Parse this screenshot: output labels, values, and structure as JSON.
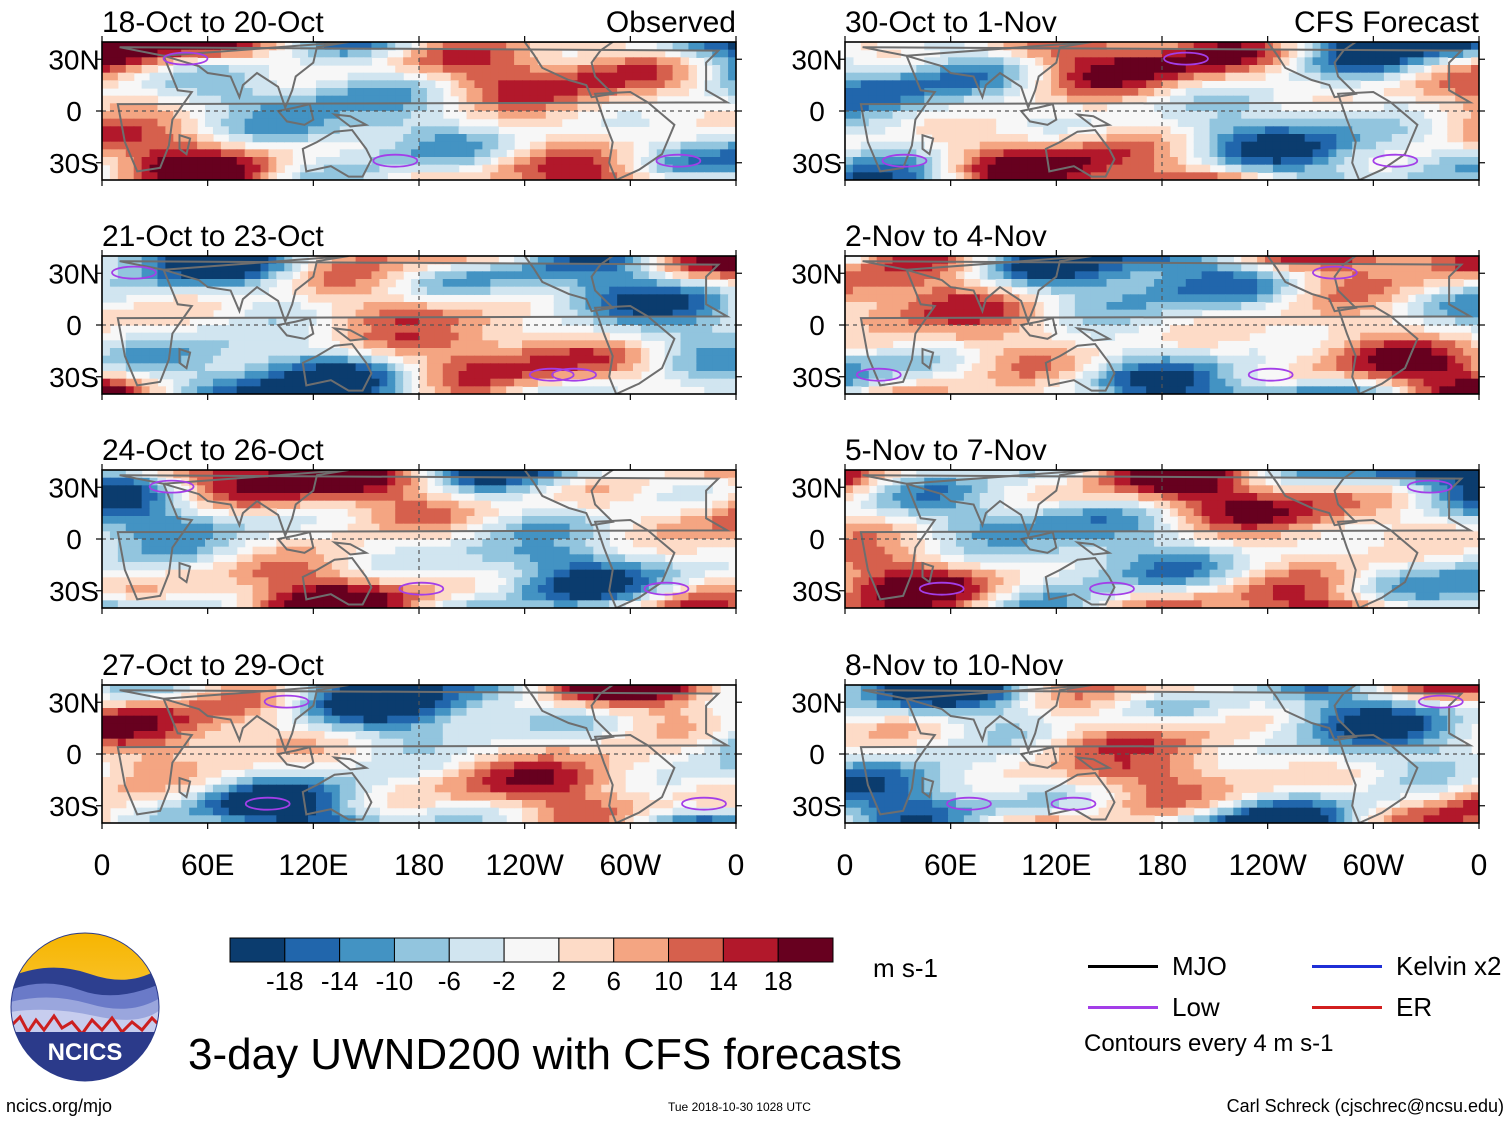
{
  "chart_data": {
    "type": "heatmap",
    "title": "3-day UWND200 with CFS forecasts",
    "variable": "UWND200",
    "units": "m s-1",
    "column_headers": [
      "Observed",
      "CFS Forecast"
    ],
    "x_ticks": [
      "0",
      "60E",
      "120E",
      "180",
      "120W",
      "60W",
      "0"
    ],
    "y_ticks": [
      "30N",
      "0",
      "30S"
    ],
    "colorbar": {
      "ticks": [
        "-18",
        "-14",
        "-10",
        "-6",
        "-2",
        "2",
        "6",
        "10",
        "14",
        "18"
      ],
      "colors": [
        "#0b3c6e",
        "#2166ac",
        "#4393c3",
        "#92c5de",
        "#d1e5f0",
        "#f7f7f7",
        "#fddbc7",
        "#f4a582",
        "#d6604d",
        "#b2182b",
        "#67001f"
      ]
    },
    "panels": [
      {
        "label": "18-Oct to 20-Oct",
        "source": "Observed"
      },
      {
        "label": "21-Oct to 23-Oct",
        "source": "Observed"
      },
      {
        "label": "24-Oct to 26-Oct",
        "source": "Observed"
      },
      {
        "label": "27-Oct to 29-Oct",
        "source": "Observed"
      },
      {
        "label": "30-Oct to 1-Nov",
        "source": "CFS Forecast"
      },
      {
        "label": "2-Nov to 4-Nov",
        "source": "CFS Forecast"
      },
      {
        "label": "5-Nov to 7-Nov",
        "source": "CFS Forecast"
      },
      {
        "label": "8-Nov to 10-Nov",
        "source": "CFS Forecast"
      }
    ],
    "legend": [
      {
        "label": "MJO",
        "color": "#000000"
      },
      {
        "label": "Kelvin x2",
        "color": "#1f2fd6"
      },
      {
        "label": "Low",
        "color": "#a33ee8"
      },
      {
        "label": "ER",
        "color": "#d21f1f"
      }
    ],
    "contour_note": "Contours every 4 m s-1"
  },
  "logo": {
    "text": "NCICS"
  },
  "footer": {
    "left": "ncics.org/mjo",
    "middle": "Tue 2018-10-30 1028 UTC",
    "right": "Carl Schreck (cjschrec@ncsu.edu)"
  }
}
